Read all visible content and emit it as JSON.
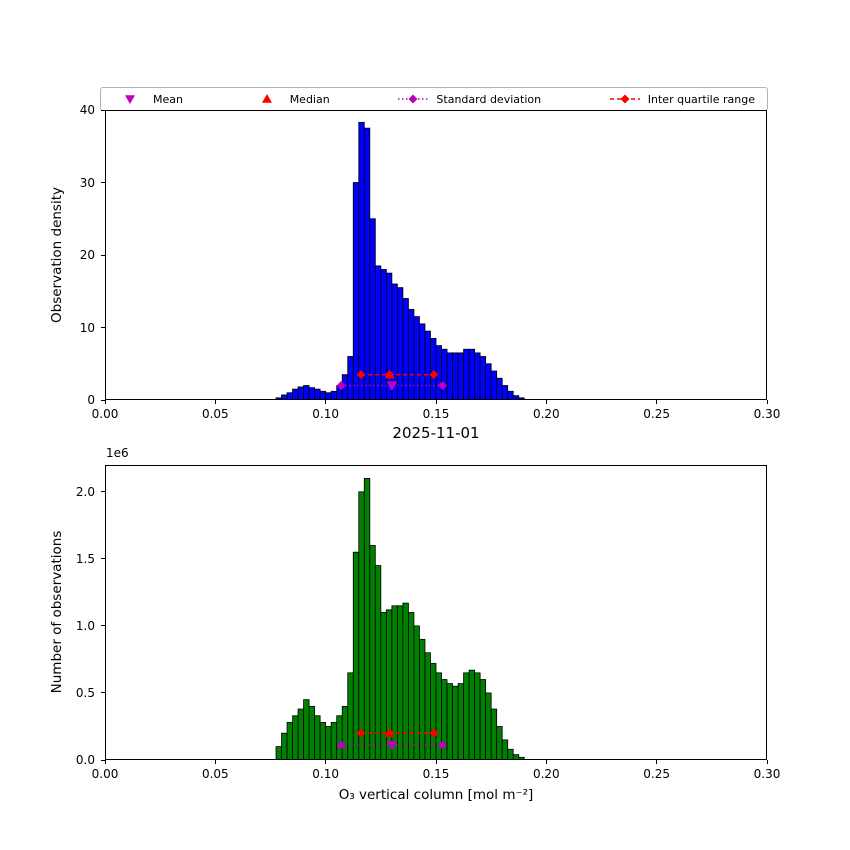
{
  "figure": {
    "colors": {
      "blue": "#0000ff",
      "green": "#008000",
      "red": "#ff0000",
      "magenta": "#bf00bf",
      "edge": "#000000"
    },
    "legend": [
      {
        "label": "Mean",
        "marker": "triangle-down",
        "line": "none",
        "color": "#bf00bf"
      },
      {
        "label": "Median",
        "marker": "triangle-up",
        "line": "none",
        "color": "#ff0000"
      },
      {
        "label": "Standard deviation",
        "marker": "diamond",
        "line": "dotted",
        "color": "#bf00bf"
      },
      {
        "label": "Inter quartile range",
        "marker": "diamond",
        "line": "dashed",
        "color": "#ff0000"
      }
    ]
  },
  "chart_data": [
    {
      "type": "bar",
      "title": "",
      "ylabel": "Observation density",
      "bar_color": "#0000ff",
      "bin_start": 0.0775,
      "bin_width": 0.0025,
      "values": [
        0.3,
        0.7,
        1.0,
        1.5,
        1.8,
        2.0,
        1.7,
        1.5,
        1.2,
        1.0,
        1.2,
        2.0,
        3.5,
        6.0,
        30.0,
        38.3,
        37.5,
        25.0,
        18.5,
        18.0,
        17.5,
        16.0,
        15.5,
        14.0,
        12.5,
        11.5,
        10.5,
        9.5,
        8.5,
        7.5,
        7.0,
        6.5,
        6.5,
        6.5,
        7.0,
        7.0,
        6.5,
        6.0,
        5.0,
        4.0,
        3.0,
        2.0,
        1.2,
        0.6,
        0.3
      ],
      "xlim": [
        0.0,
        0.3
      ],
      "ylim": [
        0,
        40
      ],
      "xticks": [
        0.0,
        0.05,
        0.1,
        0.15,
        0.2,
        0.25,
        0.3
      ],
      "xtick_labels": [
        "0.00",
        "0.05",
        "0.10",
        "0.15",
        "0.20",
        "0.25",
        "0.30"
      ],
      "yticks": [
        0,
        10,
        20,
        30,
        40
      ],
      "ytick_labels": [
        "0",
        "10",
        "20",
        "30",
        "40"
      ],
      "overlays": {
        "std": {
          "x1": 0.107,
          "x2": 0.153,
          "y": 2.0
        },
        "mean": {
          "x": 0.13,
          "y": 2.0
        },
        "iqr": {
          "x1": 0.116,
          "x2": 0.149,
          "y": 3.5
        },
        "median": {
          "x": 0.129,
          "y": 3.5
        }
      }
    },
    {
      "type": "bar",
      "title": "2025-11-01",
      "ylabel": "Number of observations",
      "xlabel": "O₃ vertical column [mol m⁻²]",
      "offset_text": "1e6",
      "bar_color": "#008000",
      "bin_start": 0.0775,
      "bin_width": 0.0025,
      "values": [
        0.1,
        0.2,
        0.28,
        0.33,
        0.38,
        0.45,
        0.4,
        0.33,
        0.28,
        0.25,
        0.28,
        0.33,
        0.4,
        0.65,
        1.55,
        2.0,
        2.1,
        1.6,
        1.45,
        1.1,
        1.12,
        1.15,
        1.15,
        1.17,
        1.1,
        1.0,
        0.9,
        0.8,
        0.72,
        0.65,
        0.6,
        0.57,
        0.55,
        0.57,
        0.65,
        0.67,
        0.65,
        0.6,
        0.5,
        0.38,
        0.25,
        0.15,
        0.08,
        0.04,
        0.02
      ],
      "xlim": [
        0.0,
        0.3
      ],
      "ylim": [
        0,
        2.2
      ],
      "xticks": [
        0.0,
        0.05,
        0.1,
        0.15,
        0.2,
        0.25,
        0.3
      ],
      "xtick_labels": [
        "0.00",
        "0.05",
        "0.10",
        "0.15",
        "0.20",
        "0.25",
        "0.30"
      ],
      "yticks": [
        0.0,
        0.5,
        1.0,
        1.5,
        2.0
      ],
      "ytick_labels": [
        "0.0",
        "0.5",
        "1.0",
        "1.5",
        "2.0"
      ],
      "overlays": {
        "std": {
          "x1": 0.107,
          "x2": 0.153,
          "y": 0.11
        },
        "mean": {
          "x": 0.13,
          "y": 0.11
        },
        "iqr": {
          "x1": 0.116,
          "x2": 0.149,
          "y": 0.2
        },
        "median": {
          "x": 0.129,
          "y": 0.2
        }
      }
    }
  ]
}
